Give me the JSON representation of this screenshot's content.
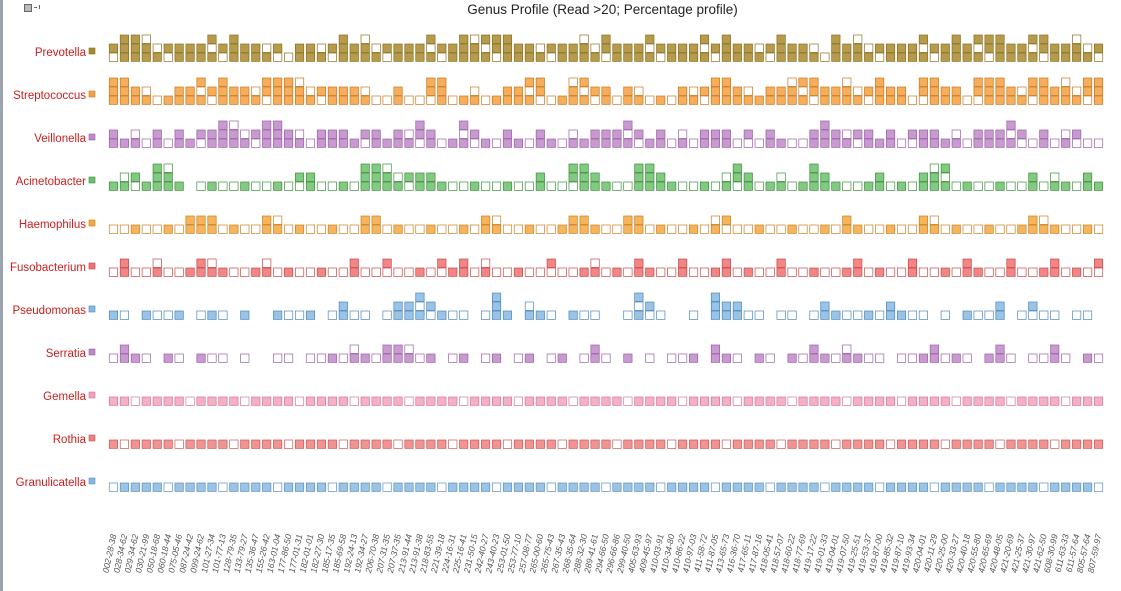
{
  "chart_data": {
    "type": "unit-bar",
    "title": "Genus Profile (Read >20; Percentage profile)",
    "categories": [
      "002-28-38",
      "028-34-62",
      "029-34-62",
      "030-21-99",
      "050-18-68",
      "060-18-44",
      "075-05-46",
      "087-24-42",
      "099-24-62",
      "101-27-34",
      "101-77-13",
      "128-79-35",
      "133-79-27",
      "135-36-47",
      "155-26-42",
      "163-01-04",
      "177-86-50",
      "177-01-31",
      "182-01-01",
      "182-27-30",
      "185-17-35",
      "185-69-58",
      "192-24-13",
      "192-34-27",
      "206-70-38",
      "207-31-35",
      "207-37-35",
      "213-91-44",
      "213-91-38",
      "218-83-55",
      "221-39-18",
      "224-16-31",
      "225-16-41",
      "231-50-15",
      "242-40-27",
      "243-40-23",
      "253-01-50",
      "253-77-10",
      "257-08-77",
      "265-00-60",
      "265-75-43",
      "267-35-43",
      "268-35-64",
      "288-32-30",
      "289-41-61",
      "294-66-50",
      "296-66-86",
      "299-40-50",
      "405-63-93",
      "409-45-97",
      "410-03-91",
      "410-34-80",
      "410-86-22",
      "410-97-03",
      "411-58-72",
      "411-87-05",
      "413-65-73",
      "416-36-70",
      "417-65-11",
      "417-87-16",
      "418-05-41",
      "418-57-07",
      "418-60-22",
      "418-77-69",
      "419-17-22",
      "419-01-33",
      "419-04-01",
      "419-07-50",
      "419-25-51",
      "419-53-37",
      "419-87-00",
      "419-85-32",
      "419-87-10",
      "419-93-34",
      "420-04-01",
      "420-11-29",
      "420-25-00",
      "420-33-27",
      "420-40-18",
      "420-55-80",
      "420-65-69",
      "420-48-05",
      "421-20-69",
      "421-25-37",
      "421-30-97",
      "421-62-50",
      "608-30-99",
      "611-63-33",
      "611-57-64",
      "805-57-64",
      "807-59-97"
    ],
    "series": [
      {
        "name": "Prevotella",
        "color": "#a88a2c",
        "edge": "#8a7020",
        "values": [
          2,
          3,
          3,
          3,
          2,
          2,
          2,
          2,
          2,
          3,
          2,
          3,
          2,
          2,
          2,
          2,
          1,
          2,
          2,
          2,
          2,
          3,
          2,
          3,
          2,
          2,
          2,
          2,
          2,
          3,
          2,
          2,
          3,
          3,
          3,
          3,
          3,
          2,
          2,
          2,
          2,
          2,
          2,
          3,
          2,
          3,
          2,
          2,
          2,
          3,
          2,
          2,
          2,
          2,
          3,
          2,
          3,
          2,
          2,
          2,
          2,
          3,
          2,
          2,
          2,
          1,
          3,
          2,
          3,
          2,
          2,
          2,
          2,
          2,
          3,
          2,
          2,
          3,
          2,
          3,
          3,
          3,
          2,
          2,
          3,
          3,
          2,
          2,
          3,
          2,
          2
        ]
      },
      {
        "name": "Streptococcus",
        "color": "#f5a040",
        "edge": "#c87820",
        "values": [
          3,
          3,
          2,
          2,
          1,
          1,
          2,
          2,
          3,
          2,
          3,
          2,
          2,
          2,
          3,
          3,
          3,
          3,
          2,
          2,
          2,
          2,
          2,
          2,
          1,
          1,
          2,
          1,
          1,
          3,
          3,
          1,
          1,
          2,
          1,
          1,
          2,
          2,
          3,
          3,
          1,
          1,
          3,
          3,
          2,
          2,
          1,
          2,
          2,
          1,
          1,
          1,
          2,
          2,
          2,
          3,
          3,
          2,
          2,
          1,
          2,
          2,
          3,
          3,
          3,
          2,
          2,
          3,
          2,
          2,
          3,
          2,
          2,
          1,
          3,
          3,
          2,
          2,
          1,
          3,
          3,
          3,
          2,
          2,
          3,
          3,
          2,
          3,
          2,
          3,
          3
        ]
      },
      {
        "name": "Veillonella",
        "color": "#c088c8",
        "edge": "#9a60a8",
        "values": [
          2,
          1,
          2,
          1,
          2,
          1,
          2,
          1,
          2,
          2,
          3,
          3,
          2,
          2,
          3,
          3,
          2,
          2,
          1,
          2,
          2,
          2,
          1,
          2,
          2,
          1,
          2,
          2,
          3,
          2,
          1,
          1,
          3,
          2,
          1,
          1,
          2,
          1,
          1,
          2,
          1,
          1,
          2,
          1,
          2,
          2,
          2,
          3,
          2,
          1,
          2,
          1,
          2,
          1,
          2,
          2,
          2,
          1,
          2,
          1,
          2,
          1,
          1,
          1,
          2,
          3,
          2,
          2,
          2,
          2,
          1,
          2,
          1,
          2,
          2,
          2,
          1,
          2,
          1,
          2,
          2,
          2,
          3,
          2,
          1,
          2,
          1,
          2,
          2,
          1,
          1
        ]
      },
      {
        "name": "Acinetobacter",
        "color": "#6cbf6c",
        "edge": "#3e8e3e",
        "values": [
          1,
          2,
          2,
          1,
          3,
          3,
          1,
          0,
          1,
          1,
          1,
          1,
          1,
          1,
          1,
          1,
          1,
          2,
          2,
          1,
          1,
          1,
          1,
          3,
          3,
          3,
          2,
          2,
          2,
          2,
          1,
          1,
          1,
          1,
          1,
          1,
          1,
          1,
          1,
          2,
          1,
          1,
          3,
          3,
          2,
          1,
          1,
          1,
          3,
          3,
          2,
          1,
          1,
          1,
          1,
          1,
          2,
          3,
          2,
          1,
          1,
          2,
          1,
          1,
          3,
          2,
          1,
          1,
          1,
          1,
          2,
          1,
          1,
          1,
          2,
          3,
          3,
          1,
          1,
          1,
          1,
          1,
          1,
          1,
          2,
          1,
          2,
          1,
          1,
          2,
          1
        ]
      },
      {
        "name": "Haemophilus",
        "color": "#f5a840",
        "edge": "#c88020",
        "values": [
          1,
          1,
          1,
          1,
          1,
          1,
          1,
          2,
          2,
          2,
          1,
          1,
          1,
          1,
          2,
          2,
          1,
          1,
          1,
          1,
          1,
          1,
          1,
          2,
          2,
          1,
          1,
          1,
          1,
          1,
          1,
          1,
          1,
          1,
          2,
          2,
          1,
          1,
          1,
          1,
          1,
          1,
          2,
          2,
          1,
          1,
          1,
          2,
          2,
          1,
          1,
          1,
          1,
          1,
          1,
          2,
          2,
          1,
          1,
          1,
          1,
          1,
          1,
          1,
          1,
          1,
          1,
          2,
          1,
          1,
          1,
          1,
          1,
          1,
          2,
          2,
          1,
          1,
          1,
          1,
          1,
          1,
          1,
          1,
          2,
          2,
          1,
          1,
          1,
          1,
          1
        ]
      },
      {
        "name": "Fusobacterium",
        "color": "#f07070",
        "edge": "#c84848",
        "values": [
          1,
          2,
          1,
          1,
          2,
          1,
          1,
          1,
          2,
          2,
          1,
          1,
          1,
          1,
          2,
          1,
          1,
          1,
          1,
          1,
          1,
          1,
          2,
          1,
          1,
          2,
          1,
          1,
          1,
          1,
          2,
          1,
          2,
          1,
          2,
          1,
          1,
          1,
          1,
          1,
          2,
          1,
          1,
          1,
          2,
          1,
          1,
          1,
          2,
          1,
          1,
          1,
          2,
          1,
          1,
          1,
          2,
          1,
          1,
          1,
          1,
          2,
          1,
          1,
          1,
          1,
          1,
          1,
          2,
          1,
          1,
          1,
          1,
          2,
          1,
          1,
          1,
          1,
          2,
          1,
          1,
          1,
          2,
          1,
          1,
          1,
          2,
          1,
          1,
          1,
          2
        ]
      },
      {
        "name": "Pseudomonas",
        "color": "#88b8e0",
        "edge": "#4a88c0",
        "values": [
          1,
          1,
          0,
          1,
          1,
          1,
          1,
          0,
          1,
          1,
          1,
          0,
          1,
          0,
          0,
          1,
          1,
          1,
          1,
          0,
          1,
          2,
          1,
          1,
          0,
          1,
          2,
          2,
          3,
          2,
          1,
          1,
          1,
          0,
          1,
          3,
          1,
          0,
          2,
          1,
          1,
          0,
          1,
          1,
          1,
          0,
          0,
          1,
          3,
          2,
          1,
          0,
          0,
          1,
          0,
          3,
          2,
          2,
          1,
          1,
          0,
          1,
          1,
          0,
          1,
          2,
          1,
          1,
          1,
          1,
          1,
          2,
          1,
          1,
          1,
          0,
          1,
          0,
          1,
          1,
          1,
          2,
          0,
          1,
          2,
          1,
          1,
          0,
          1,
          1,
          0
        ]
      },
      {
        "name": "Serratia",
        "color": "#c088c8",
        "edge": "#9a60a8",
        "values": [
          1,
          2,
          1,
          1,
          0,
          1,
          1,
          0,
          1,
          1,
          1,
          0,
          1,
          0,
          0,
          1,
          1,
          0,
          1,
          1,
          1,
          1,
          2,
          1,
          1,
          2,
          2,
          2,
          1,
          1,
          0,
          1,
          1,
          0,
          1,
          1,
          0,
          1,
          1,
          0,
          1,
          1,
          0,
          1,
          2,
          1,
          0,
          1,
          0,
          1,
          0,
          1,
          1,
          1,
          0,
          2,
          1,
          1,
          0,
          1,
          1,
          0,
          1,
          1,
          2,
          1,
          1,
          2,
          1,
          1,
          1,
          0,
          1,
          1,
          1,
          2,
          1,
          1,
          1,
          0,
          1,
          2,
          1,
          0,
          1,
          1,
          2,
          1,
          0,
          1,
          1
        ]
      },
      {
        "name": "Gemella",
        "color": "#f5a0c0",
        "edge": "#d07898",
        "values": [
          1,
          1,
          1,
          1,
          1,
          1,
          1,
          1,
          1,
          1,
          1,
          1,
          1,
          1,
          1,
          1,
          1,
          1,
          1,
          1,
          1,
          1,
          1,
          1,
          1,
          1,
          1,
          1,
          1,
          1,
          1,
          1,
          1,
          1,
          1,
          1,
          1,
          1,
          1,
          1,
          1,
          1,
          1,
          1,
          1,
          1,
          1,
          1,
          1,
          1,
          1,
          1,
          1,
          1,
          1,
          1,
          1,
          1,
          1,
          1,
          1,
          1,
          1,
          1,
          1,
          1,
          1,
          1,
          1,
          1,
          1,
          1,
          1,
          1,
          1,
          1,
          1,
          1,
          1,
          1,
          1,
          1,
          1,
          1,
          1,
          1,
          1,
          1,
          1,
          1,
          1
        ]
      },
      {
        "name": "Rothia",
        "color": "#f08080",
        "edge": "#c85858",
        "values": [
          1,
          1,
          1,
          1,
          1,
          1,
          1,
          1,
          1,
          1,
          1,
          1,
          1,
          1,
          1,
          1,
          1,
          1,
          1,
          1,
          1,
          1,
          1,
          1,
          1,
          1,
          1,
          1,
          1,
          1,
          1,
          1,
          1,
          1,
          1,
          1,
          1,
          1,
          1,
          1,
          1,
          1,
          1,
          1,
          1,
          1,
          1,
          1,
          1,
          1,
          1,
          1,
          1,
          1,
          1,
          1,
          1,
          1,
          1,
          1,
          1,
          1,
          1,
          1,
          1,
          1,
          1,
          1,
          1,
          1,
          1,
          1,
          1,
          1,
          1,
          1,
          1,
          1,
          1,
          1,
          1,
          1,
          1,
          1,
          1,
          1,
          1,
          1,
          1,
          1,
          1
        ]
      },
      {
        "name": "Granulicatella",
        "color": "#88b8e0",
        "edge": "#5a90c0",
        "values": [
          1,
          1,
          1,
          1,
          1,
          1,
          1,
          1,
          1,
          1,
          1,
          1,
          1,
          1,
          1,
          1,
          1,
          1,
          1,
          1,
          1,
          1,
          1,
          1,
          1,
          1,
          1,
          1,
          1,
          1,
          1,
          1,
          1,
          1,
          1,
          1,
          1,
          1,
          1,
          1,
          1,
          1,
          1,
          1,
          1,
          1,
          1,
          1,
          1,
          1,
          1,
          1,
          1,
          1,
          1,
          1,
          1,
          1,
          1,
          1,
          1,
          1,
          1,
          1,
          1,
          1,
          1,
          1,
          1,
          1,
          1,
          1,
          1,
          1,
          1,
          1,
          1,
          1,
          1,
          1,
          1,
          1,
          1,
          1,
          1,
          1,
          1,
          1,
          1,
          1,
          1
        ]
      }
    ],
    "label_color": "#c81e1e",
    "grid": false
  }
}
